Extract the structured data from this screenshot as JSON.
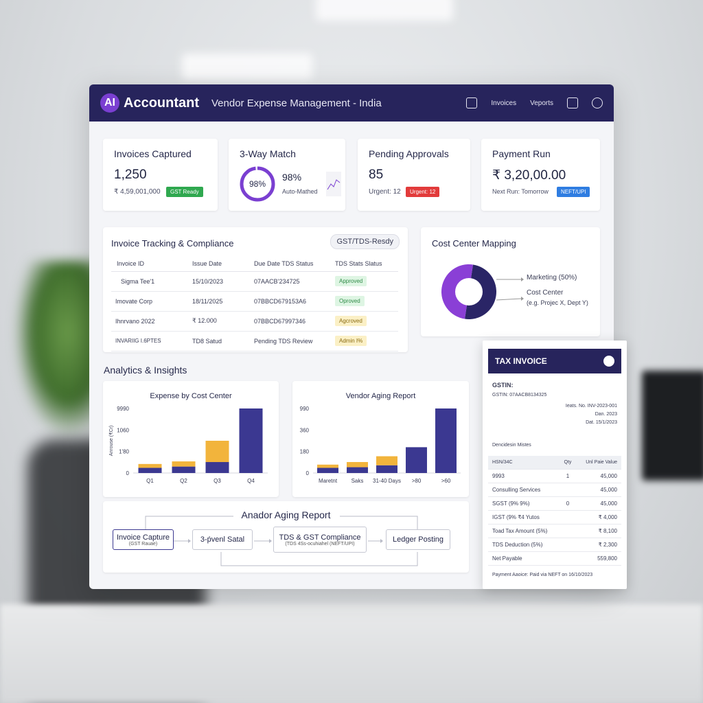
{
  "header": {
    "logo": "AI",
    "brand": "Accountant",
    "title": "Vendor Expense Management - India",
    "nav": [
      "Invoices",
      "Veports"
    ]
  },
  "kpis": {
    "invoices": {
      "title": "Invoices Captured",
      "value": "1,250",
      "sub": "₹ 4,59,001,000",
      "badge": "GST Ready"
    },
    "match": {
      "title": "3-Way Match",
      "ring_label": "98%",
      "value": "98%",
      "sub": "Auto-Mathed",
      "percent": 98
    },
    "pending": {
      "title": "Pending Approvals",
      "value": "85",
      "sub": "Urgent: 12",
      "badge": "Urgent: 12"
    },
    "payment": {
      "title": "Payment Run",
      "value": "₹ 3,20,00.00",
      "sub": "Next Run: Tomorrow",
      "badge": "NEFT/UPI"
    }
  },
  "tracking": {
    "title": "Invoice Tracking & Compliance",
    "tag": "GST/TDS-Resdy",
    "columns": [
      "Invoice ID",
      "Issue Date",
      "Due Date  TDS Status",
      "TDS Stats Slatus"
    ],
    "rows": [
      {
        "id": "Sigma Tee'1",
        "issue": "15/10/2023",
        "due": "07AACB’234725",
        "status": "Approved",
        "tone": "green"
      },
      {
        "id": "Imovate Corp",
        "issue": "18/11/2025",
        "due": "07BBCD679153A6",
        "status": "Oproved",
        "tone": "green"
      },
      {
        "id": "Ihnrvano 2022",
        "issue": "₹ 12.000",
        "due": "07BBCD67997346",
        "status": "Agcroved",
        "tone": "yellow"
      },
      {
        "id": "INVARIIG I.6PTES",
        "issue": "TD8 Satud",
        "due": "Pending TDS Review",
        "status": "Admin I%",
        "tone": "yellow"
      }
    ]
  },
  "cost_center": {
    "title": "Cost Center Mapping",
    "label1": "Marketing (50%)",
    "label2": "Cost Center",
    "label3": "(e.g. Projec X, Dept Y)",
    "slices": [
      {
        "name": "Marketing",
        "value": 50,
        "color": "#2a2566"
      },
      {
        "name": "Other",
        "value": 50,
        "color": "#8a3fd6"
      }
    ]
  },
  "analytics_title": "Analytics & Insights",
  "charts": [
    {
      "title": "Expense by Cost Center",
      "type": "bar",
      "ylabel": "Anrouse (₹Cr)",
      "yticks": [
        "9990",
        "1060",
        "1'80",
        "0"
      ],
      "categories": [
        "Q1",
        "Q2",
        "Q3",
        "Q4"
      ],
      "series": [
        {
          "values": [
            8,
            10,
            17,
            100
          ],
          "color": "#3b3891"
        },
        {
          "values": [
            6,
            8,
            33,
            0
          ],
          "color": "#f2b43c"
        }
      ]
    },
    {
      "title": "Vendor Aging Report",
      "type": "bar",
      "yticks": [
        "990",
        "360",
        "180",
        "0"
      ],
      "categories": [
        "Maretnt",
        "Saks",
        "31-40 Days",
        ">80",
        ">60"
      ],
      "series": [
        {
          "values": [
            8,
            9,
            12,
            40,
            100
          ],
          "color": "#3b3891"
        },
        {
          "values": [
            5,
            8,
            14,
            0,
            0
          ],
          "color": "#f2b43c"
        }
      ]
    }
  ],
  "flow": {
    "title": "Anador Aging Report",
    "steps": [
      {
        "label": "Invoice Capture",
        "sub": "(GST Rauae)"
      },
      {
        "label": "3-ṕvenl Satal",
        "sub": ""
      },
      {
        "label": "TDS & GST Compliance",
        "sub": "(TDS 4Ss-ocuhiahel (NEFT/UPI)"
      },
      {
        "label": "Ledger Posting",
        "sub": ""
      }
    ]
  },
  "invoice": {
    "title": "TAX INVOICE",
    "gstin_label": "GSTIN:",
    "gstin": "GSTIN: 07AACB8134325",
    "meta": [
      "Ieats. No.   INV-2023-001",
      "Dan. 2023",
      "Dat. 15/1/2023"
    ],
    "desc": "Dencidesin Mistes",
    "head": [
      "HSN/34C",
      "Qty",
      "Unl Paie Value"
    ],
    "rows": [
      [
        "9993",
        "1",
        "45,000"
      ],
      [
        "Consulling Services",
        "",
        "45,000"
      ],
      [
        "SGST (9% 9%)",
        "0",
        "45,000"
      ],
      [
        "IGST (9% ₹4 Yutos",
        "",
        "₹ 4,000"
      ],
      [
        "Toad Tax Amount (5%)",
        "",
        "₹ 8,100"
      ],
      [
        "TDS Deduction (5%)",
        "",
        "₹ 2,300"
      ],
      [
        "Net Payable",
        "",
        "559,800"
      ]
    ],
    "footer": "Payment Aaoice: Paid via NEFT on 16/10/2023"
  }
}
